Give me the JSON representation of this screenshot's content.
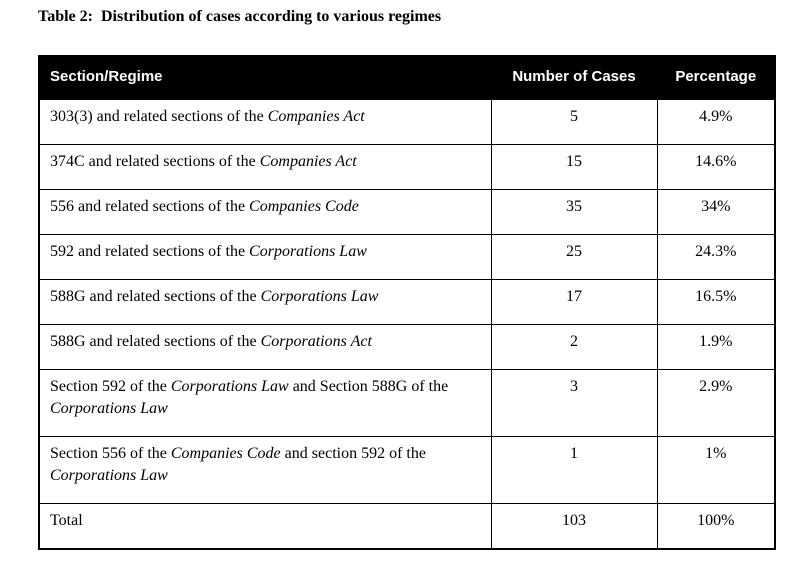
{
  "title": "Table 2:  Distribution of cases according to various regimes",
  "colors": {
    "header_bg": "#000000",
    "header_text": "#ffffff",
    "body_text": "#000000",
    "border": "#000000",
    "page_bg": "#ffffff"
  },
  "table": {
    "columns": [
      "Section/Regime",
      "Number of Cases",
      "Percentage"
    ],
    "rows": [
      {
        "label": [
          {
            "text": "303(3) and related sections of the ",
            "italic": false
          },
          {
            "text": "Companies Act",
            "italic": true
          }
        ],
        "cases": "5",
        "percentage": "4.9%",
        "tall": false
      },
      {
        "label": [
          {
            "text": "374C and related sections of the ",
            "italic": false
          },
          {
            "text": "Companies Act",
            "italic": true
          }
        ],
        "cases": "15",
        "percentage": "14.6%",
        "tall": false
      },
      {
        "label": [
          {
            "text": "556 and related sections of the ",
            "italic": false
          },
          {
            "text": "Companies Code",
            "italic": true
          }
        ],
        "cases": "35",
        "percentage": "34%",
        "tall": false
      },
      {
        "label": [
          {
            "text": "592 and related sections of the ",
            "italic": false
          },
          {
            "text": "Corporations Law",
            "italic": true
          }
        ],
        "cases": "25",
        "percentage": "24.3%",
        "tall": false
      },
      {
        "label": [
          {
            "text": "588G and related sections of the ",
            "italic": false
          },
          {
            "text": "Corporations Law",
            "italic": true
          }
        ],
        "cases": "17",
        "percentage": "16.5%",
        "tall": false
      },
      {
        "label": [
          {
            "text": "588G and related sections of the ",
            "italic": false
          },
          {
            "text": "Corporations Act",
            "italic": true
          }
        ],
        "cases": "2",
        "percentage": "1.9%",
        "tall": false
      },
      {
        "label": [
          {
            "text": "Section 592 of the ",
            "italic": false
          },
          {
            "text": "Corporations Law",
            "italic": true
          },
          {
            "text": " and Section 588G of the ",
            "italic": false
          },
          {
            "text": "Corporations Law",
            "italic": true
          }
        ],
        "cases": "3",
        "percentage": "2.9%",
        "tall": true
      },
      {
        "label": [
          {
            "text": "Section 556 of the ",
            "italic": false
          },
          {
            "text": "Companies Code",
            "italic": true
          },
          {
            "text": " and section 592 of the ",
            "italic": false
          },
          {
            "text": "Corporations Law",
            "italic": true
          }
        ],
        "cases": "1",
        "percentage": "1%",
        "tall": true
      },
      {
        "label": [
          {
            "text": "Total",
            "italic": false
          }
        ],
        "cases": "103",
        "percentage": "100%",
        "tall": false
      }
    ]
  }
}
